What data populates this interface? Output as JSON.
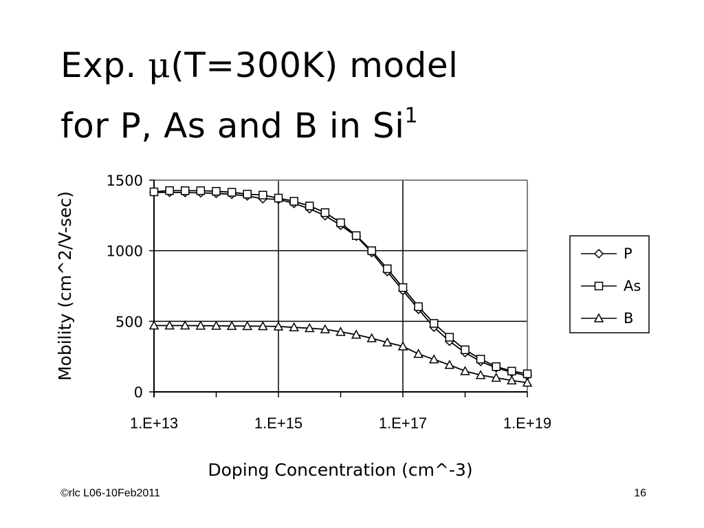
{
  "slide": {
    "title_prefix": "Exp. ",
    "title_mu": "μ",
    "title_rest": "(T=300K) model",
    "title_line2": "for P, As and B in Si",
    "title_sup": "1",
    "footer_left": "©rlc L06-10Feb2011",
    "page_number": "16"
  },
  "chart_data": {
    "type": "line",
    "xlabel": "Doping Concentration (cm^-3)",
    "ylabel": "Mobility (cm^2/V-sec)",
    "x_scale": "log",
    "xlim": [
      10000000000000.0,
      1e+19
    ],
    "ylim": [
      0,
      1500
    ],
    "x_ticks": [
      10000000000000.0,
      1000000000000000.0,
      1e+17,
      1e+19
    ],
    "x_tick_labels": [
      "1.E+13",
      "1.E+15",
      "1.E+17",
      "1.E+19"
    ],
    "y_ticks": [
      0,
      500,
      1000,
      1500
    ],
    "y_tick_labels": [
      "0",
      "500",
      "1000",
      "1500"
    ],
    "grid": true,
    "legend_position": "right",
    "x": [
      10000000000000.0,
      17800000000000.0,
      31600000000000.0,
      56200000000000.0,
      100000000000000.0,
      178000000000000.0,
      316000000000000.0,
      562000000000000.0,
      1000000000000000.0,
      1780000000000000.0,
      3160000000000000.0,
      5620000000000000.0,
      1e+16,
      1.78e+16,
      3.16e+16,
      5.62e+16,
      1e+17,
      1.78e+17,
      3.16e+17,
      5.62e+17,
      1e+18,
      1.78e+18,
      3.16e+18,
      5.62e+18,
      1e+19
    ],
    "series": [
      {
        "name": "P",
        "marker": "diamond",
        "values": [
          1413,
          1413,
          1412,
          1410,
          1406,
          1399,
          1388,
          1368,
          1364,
          1335,
          1297,
          1248,
          1180,
          1103,
          987,
          852,
          718,
          585,
          458,
          359,
          278,
          215,
          171,
          139,
          115
        ]
      },
      {
        "name": "As",
        "marker": "square",
        "values": [
          1417,
          1426,
          1425,
          1425,
          1421,
          1414,
          1401,
          1394,
          1373,
          1350,
          1317,
          1270,
          1198,
          1107,
          1000,
          872,
          739,
          604,
          485,
          387,
          298,
          232,
          179,
          147,
          128
        ]
      },
      {
        "name": "B",
        "marker": "triangle",
        "values": [
          470,
          470,
          470,
          469,
          468,
          467,
          466,
          465,
          463,
          457,
          451,
          443,
          425,
          405,
          380,
          350,
          322,
          269,
          230,
          191,
          147,
          119,
          100,
          81,
          65
        ]
      }
    ]
  }
}
